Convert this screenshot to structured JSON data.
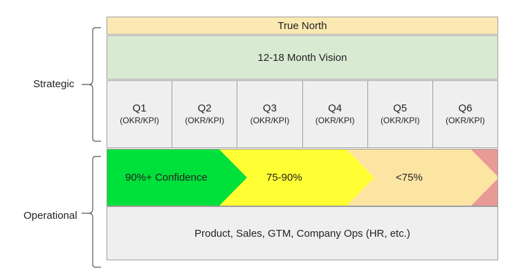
{
  "labels": {
    "strategic": "Strategic",
    "operational": "Operational"
  },
  "true_north": "True North",
  "vision": "12-18 Month Vision",
  "quarters": [
    {
      "name": "Q1",
      "sub": "(OKR/KPI)"
    },
    {
      "name": "Q2",
      "sub": "(OKR/KPI)"
    },
    {
      "name": "Q3",
      "sub": "(OKR/KPI)"
    },
    {
      "name": "Q4",
      "sub": "(OKR/KPI)"
    },
    {
      "name": "Q5",
      "sub": "(OKR/KPI)"
    },
    {
      "name": "Q6",
      "sub": "(OKR/KPI)"
    }
  ],
  "confidence": {
    "high": "90%+ Confidence",
    "mid": "75-90%",
    "low": "<75%",
    "colors": {
      "high": "#00e03a",
      "mid": "#ffff33",
      "low": "#fce5a3",
      "tail": "#e79a96"
    }
  },
  "operations": "Product, Sales, GTM, Company Ops (HR, etc.)"
}
